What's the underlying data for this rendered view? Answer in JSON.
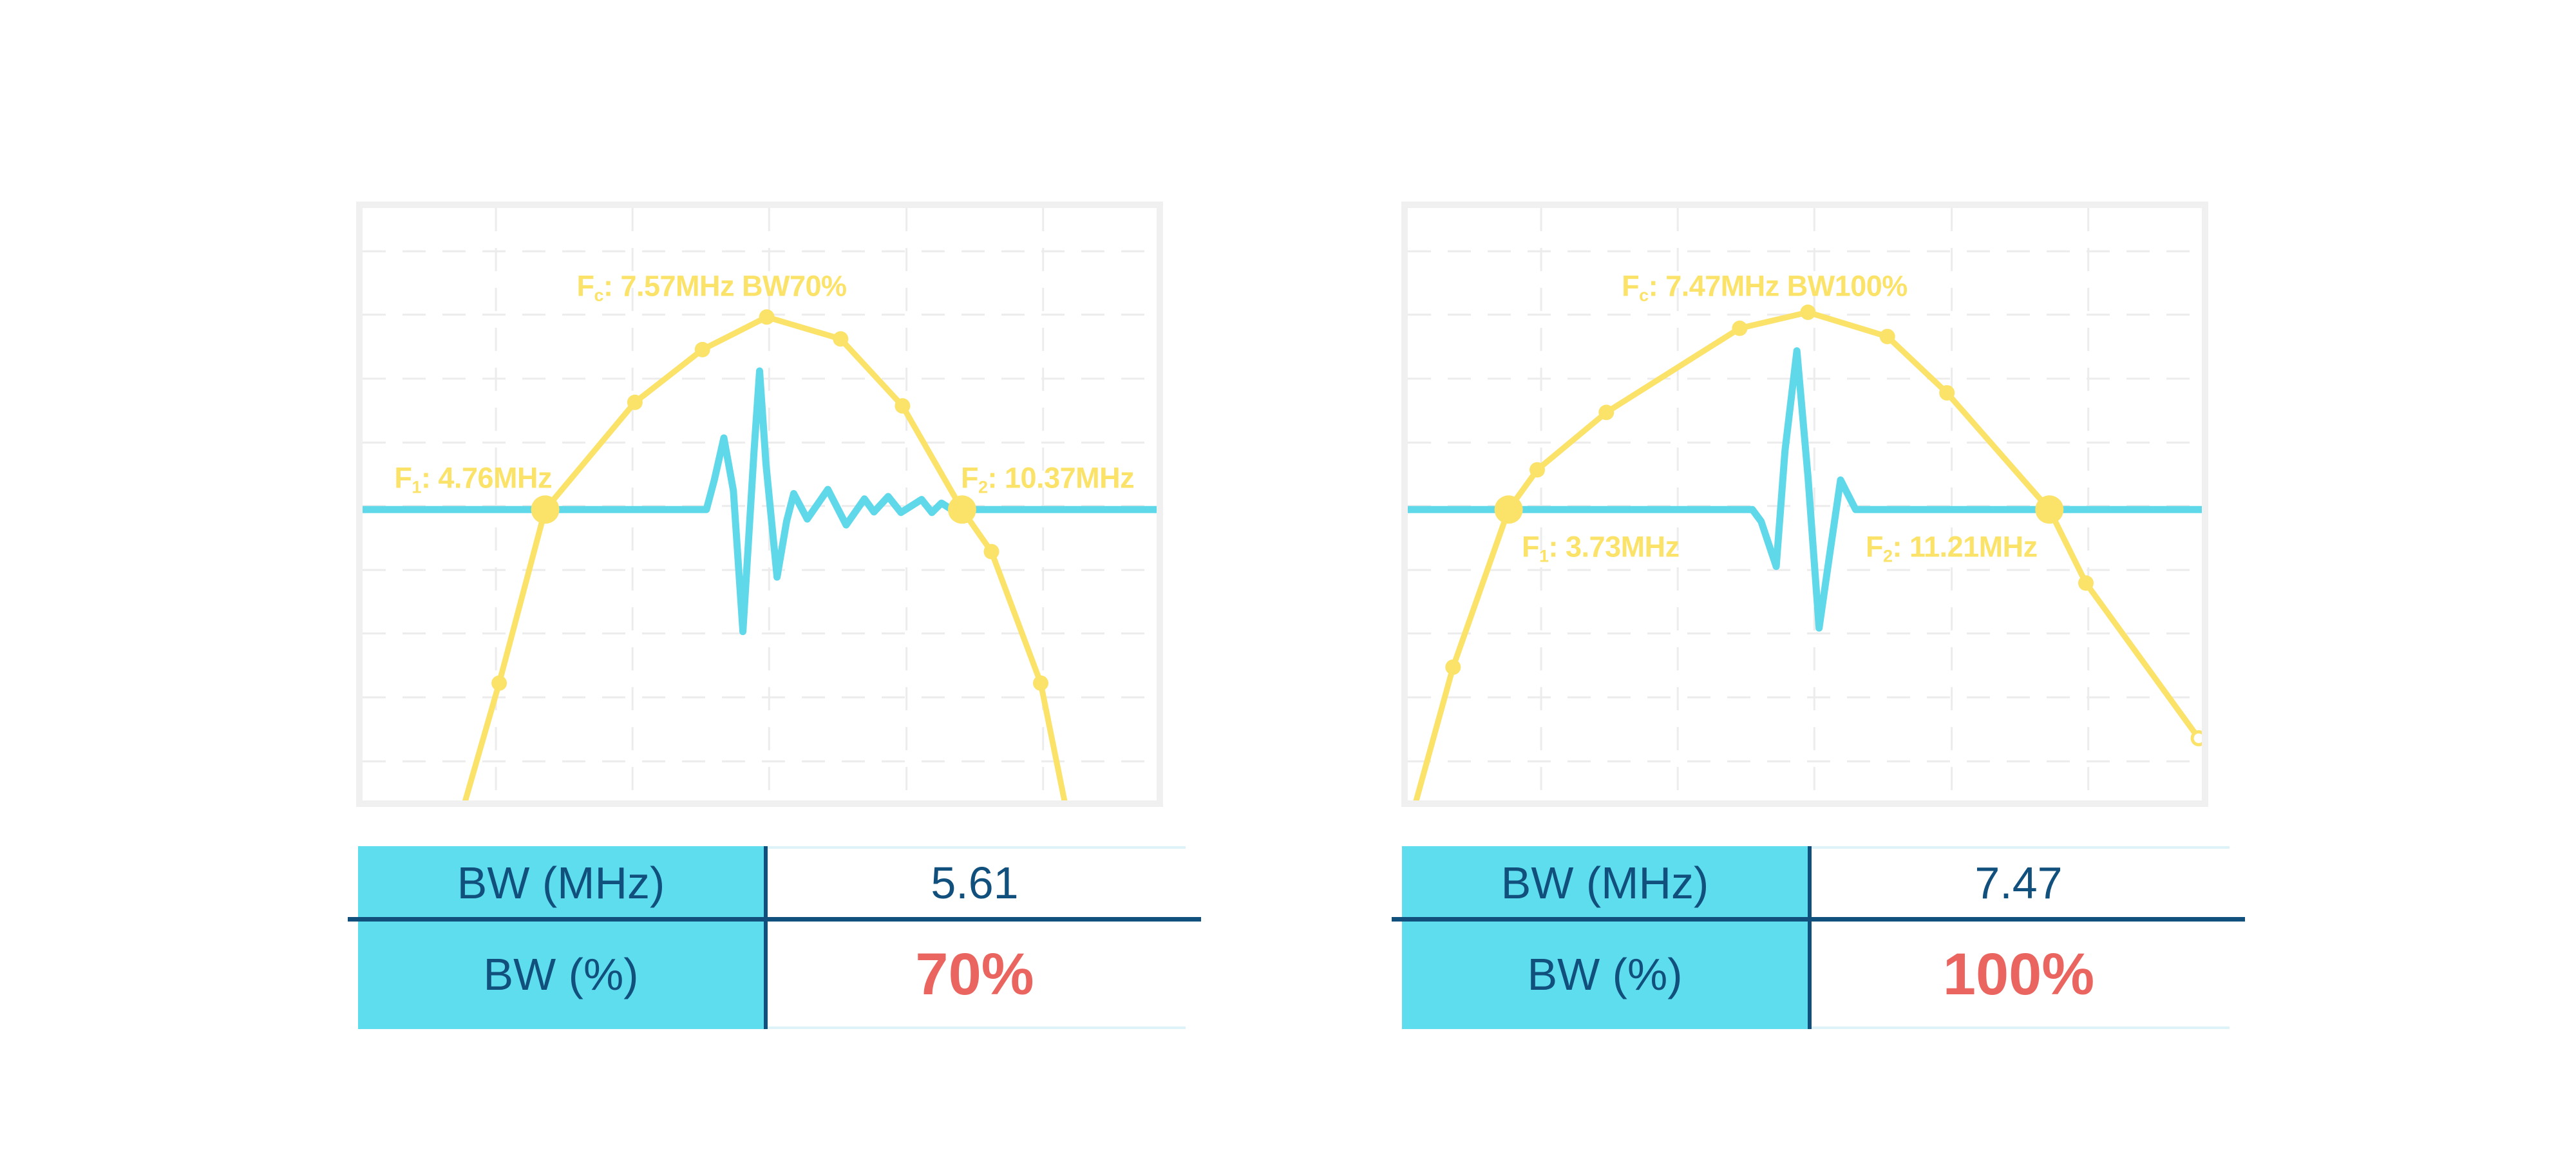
{
  "colors": {
    "spectrum_yellow": "#FBE269",
    "pulse_cyan": "#5FD8EA",
    "table_header_cyan": "#5EDDEE",
    "navy_text": "#114F7D",
    "red_emphasis": "#EA655F",
    "chart_frame_gray": "#F0F0F0",
    "grid_gray": "#ECECEC"
  },
  "charts": [
    {
      "fc": {
        "pre": "F",
        "sub": "c",
        "post": ": 7.57MHz BW70%"
      },
      "f1": {
        "pre": "F",
        "sub": "1",
        "post": ": 4.76MHz"
      },
      "f2": {
        "pre": "F",
        "sub": "2",
        "post": ": 10.37MHz"
      },
      "table": {
        "rows": [
          {
            "label": "BW (MHz)",
            "value": "5.61",
            "emphasis": false
          },
          {
            "label": "BW (%)",
            "value": "70%",
            "emphasis": true
          }
        ]
      }
    },
    {
      "fc": {
        "pre": "F",
        "sub": "c",
        "post": ": 7.47MHz BW100%"
      },
      "f1": {
        "pre": "F",
        "sub": "1",
        "post": ": 3.73MHz"
      },
      "f2": {
        "pre": "F",
        "sub": "2",
        "post": ": 11.21MHz"
      },
      "table": {
        "rows": [
          {
            "label": "BW (MHz)",
            "value": "7.47",
            "emphasis": false
          },
          {
            "label": "BW (%)",
            "value": "100%",
            "emphasis": true
          }
        ]
      }
    }
  ],
  "chart_data": [
    {
      "type": "line",
      "title": "Transducer frequency spectrum with echo pulse, 70% bandwidth",
      "xlabel": "frequency (axis unlabeled)",
      "ylabel": "amplitude (axis unlabeled)",
      "grid": "dashed rectangular grid, no tick labels",
      "legend_position": "none",
      "key_values": {
        "fc_MHz": 7.57,
        "f1_MHz": 4.76,
        "f2_MHz": 10.37,
        "bw_MHz": 5.61,
        "bw_percent": 70
      },
      "series": [
        {
          "name": "spectrum",
          "color": "#FBE269",
          "points_norm": [
            [
              0.125,
              1.021
            ],
            [
              0.172,
              0.802
            ],
            [
              0.23,
              0.509
            ],
            [
              0.343,
              0.328
            ],
            [
              0.428,
              0.239
            ],
            [
              0.509,
              0.184
            ],
            [
              0.602,
              0.221
            ],
            [
              0.68,
              0.334
            ],
            [
              0.755,
              0.509
            ],
            [
              0.792,
              0.58
            ],
            [
              0.854,
              0.802
            ],
            [
              0.887,
              1.021
            ]
          ],
          "small_marker_indices": [
            1,
            3,
            4,
            5,
            6,
            7,
            9,
            10
          ],
          "bandwidth_marker_indices": [
            2,
            8
          ]
        },
        {
          "name": "echo_pulse",
          "color": "#5FD8EA",
          "points_norm": [
            [
              0.0,
              0.509
            ],
            [
              0.433,
              0.509
            ],
            [
              0.443,
              0.459
            ],
            [
              0.455,
              0.388
            ],
            [
              0.467,
              0.477
            ],
            [
              0.479,
              0.715
            ],
            [
              0.493,
              0.41
            ],
            [
              0.5,
              0.275
            ],
            [
              0.508,
              0.432
            ],
            [
              0.522,
              0.623
            ],
            [
              0.534,
              0.529
            ],
            [
              0.543,
              0.482
            ],
            [
              0.56,
              0.525
            ],
            [
              0.586,
              0.475
            ],
            [
              0.609,
              0.535
            ],
            [
              0.632,
              0.491
            ],
            [
              0.644,
              0.513
            ],
            [
              0.662,
              0.487
            ],
            [
              0.678,
              0.514
            ],
            [
              0.704,
              0.492
            ],
            [
              0.717,
              0.514
            ],
            [
              0.729,
              0.498
            ],
            [
              0.742,
              0.509
            ],
            [
              1.0,
              0.509
            ]
          ]
        }
      ]
    },
    {
      "type": "line",
      "title": "Transducer frequency spectrum with echo pulse, 100% bandwidth",
      "xlabel": "frequency (axis unlabeled)",
      "ylabel": "amplitude (axis unlabeled)",
      "grid": "dashed rectangular grid, no tick labels",
      "legend_position": "none",
      "key_values": {
        "fc_MHz": 7.47,
        "f1_MHz": 3.73,
        "f2_MHz": 11.21,
        "bw_MHz": 7.47,
        "bw_percent": 100
      },
      "series": [
        {
          "name": "spectrum",
          "color": "#FBE269",
          "points_norm": [
            [
              0.009,
              1.008
            ],
            [
              0.057,
              0.775
            ],
            [
              0.127,
              0.509
            ],
            [
              0.163,
              0.442
            ],
            [
              0.25,
              0.345
            ],
            [
              0.418,
              0.203
            ],
            [
              0.504,
              0.176
            ],
            [
              0.604,
              0.217
            ],
            [
              0.679,
              0.312
            ],
            [
              0.808,
              0.509
            ],
            [
              0.854,
              0.633
            ],
            [
              0.996,
              0.895
            ]
          ],
          "small_marker_indices": [
            1,
            3,
            4,
            5,
            6,
            7,
            8,
            10
          ],
          "bandwidth_marker_indices": [
            2,
            9
          ],
          "end_open_marker_index": 11
        },
        {
          "name": "echo_pulse",
          "color": "#5FD8EA",
          "points_norm": [
            [
              0.0,
              0.509
            ],
            [
              0.434,
              0.509
            ],
            [
              0.445,
              0.529
            ],
            [
              0.464,
              0.605
            ],
            [
              0.475,
              0.41
            ],
            [
              0.49,
              0.241
            ],
            [
              0.504,
              0.453
            ],
            [
              0.518,
              0.709
            ],
            [
              0.532,
              0.578
            ],
            [
              0.545,
              0.459
            ],
            [
              0.553,
              0.48
            ],
            [
              0.564,
              0.509
            ],
            [
              1.0,
              0.509
            ]
          ]
        }
      ]
    }
  ]
}
